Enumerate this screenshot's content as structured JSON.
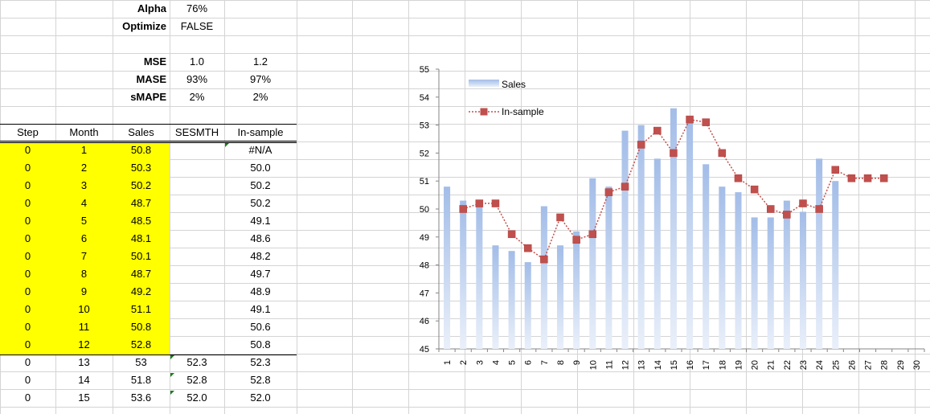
{
  "params": {
    "alpha_label": "Alpha",
    "alpha_value": "76%",
    "optimize_label": "Optimize",
    "optimize_value": "FALSE"
  },
  "metrics": [
    {
      "label": "MSE",
      "v1": "1.0",
      "v2": "1.2"
    },
    {
      "label": "MASE",
      "v1": "93%",
      "v2": "97%"
    },
    {
      "label": "sMAPE",
      "v1": "2%",
      "v2": "2%"
    }
  ],
  "table": {
    "headers": [
      "Step",
      "Month",
      "Sales",
      "SESMTH",
      "In-sample"
    ],
    "rows": [
      [
        "0",
        "1",
        "50.8",
        "",
        "#N/A"
      ],
      [
        "0",
        "2",
        "50.3",
        "",
        "50.0"
      ],
      [
        "0",
        "3",
        "50.2",
        "",
        "50.2"
      ],
      [
        "0",
        "4",
        "48.7",
        "",
        "50.2"
      ],
      [
        "0",
        "5",
        "48.5",
        "",
        "49.1"
      ],
      [
        "0",
        "6",
        "48.1",
        "",
        "48.6"
      ],
      [
        "0",
        "7",
        "50.1",
        "",
        "48.2"
      ],
      [
        "0",
        "8",
        "48.7",
        "",
        "49.7"
      ],
      [
        "0",
        "9",
        "49.2",
        "",
        "48.9"
      ],
      [
        "0",
        "10",
        "51.1",
        "",
        "49.1"
      ],
      [
        "0",
        "11",
        "50.8",
        "",
        "50.6"
      ],
      [
        "0",
        "12",
        "52.8",
        "",
        "50.8"
      ],
      [
        "0",
        "13",
        "53",
        "52.3",
        "52.3"
      ],
      [
        "0",
        "14",
        "51.8",
        "52.8",
        "52.8"
      ],
      [
        "0",
        "15",
        "53.6",
        "52.0",
        "52.0"
      ]
    ]
  },
  "colors": {
    "highlight": "#ffff00",
    "bar": "#aec3ea",
    "line": "#c0504d",
    "grid": "#d4d4d4"
  },
  "chart_data": {
    "type": "bar",
    "x": [
      1,
      2,
      3,
      4,
      5,
      6,
      7,
      8,
      9,
      10,
      11,
      12,
      13,
      14,
      15,
      16,
      17,
      18,
      19,
      20,
      21,
      22,
      23,
      24,
      25,
      26,
      27,
      28,
      29,
      30
    ],
    "ylim": [
      45,
      55
    ],
    "yticks": [
      45,
      46,
      47,
      48,
      49,
      50,
      51,
      52,
      53,
      54,
      55
    ],
    "series": [
      {
        "name": "Sales",
        "type": "bar",
        "values": [
          50.8,
          50.3,
          50.2,
          48.7,
          48.5,
          48.1,
          50.1,
          48.7,
          49.2,
          51.1,
          50.8,
          52.8,
          53.0,
          51.8,
          53.6,
          53.2,
          51.6,
          50.8,
          50.6,
          49.7,
          49.7,
          50.3,
          49.9,
          51.8,
          51.0,
          null,
          null,
          null,
          null,
          null
        ]
      },
      {
        "name": "In-sample",
        "type": "line",
        "values": [
          null,
          50.0,
          50.2,
          50.2,
          49.1,
          48.6,
          48.2,
          49.7,
          48.9,
          49.1,
          50.6,
          50.8,
          52.3,
          52.8,
          52.0,
          53.2,
          53.1,
          52.0,
          51.1,
          50.7,
          50.0,
          49.8,
          50.2,
          50.0,
          51.4,
          51.1,
          51.1,
          51.1,
          null,
          null
        ]
      }
    ],
    "legend": "top-left"
  }
}
